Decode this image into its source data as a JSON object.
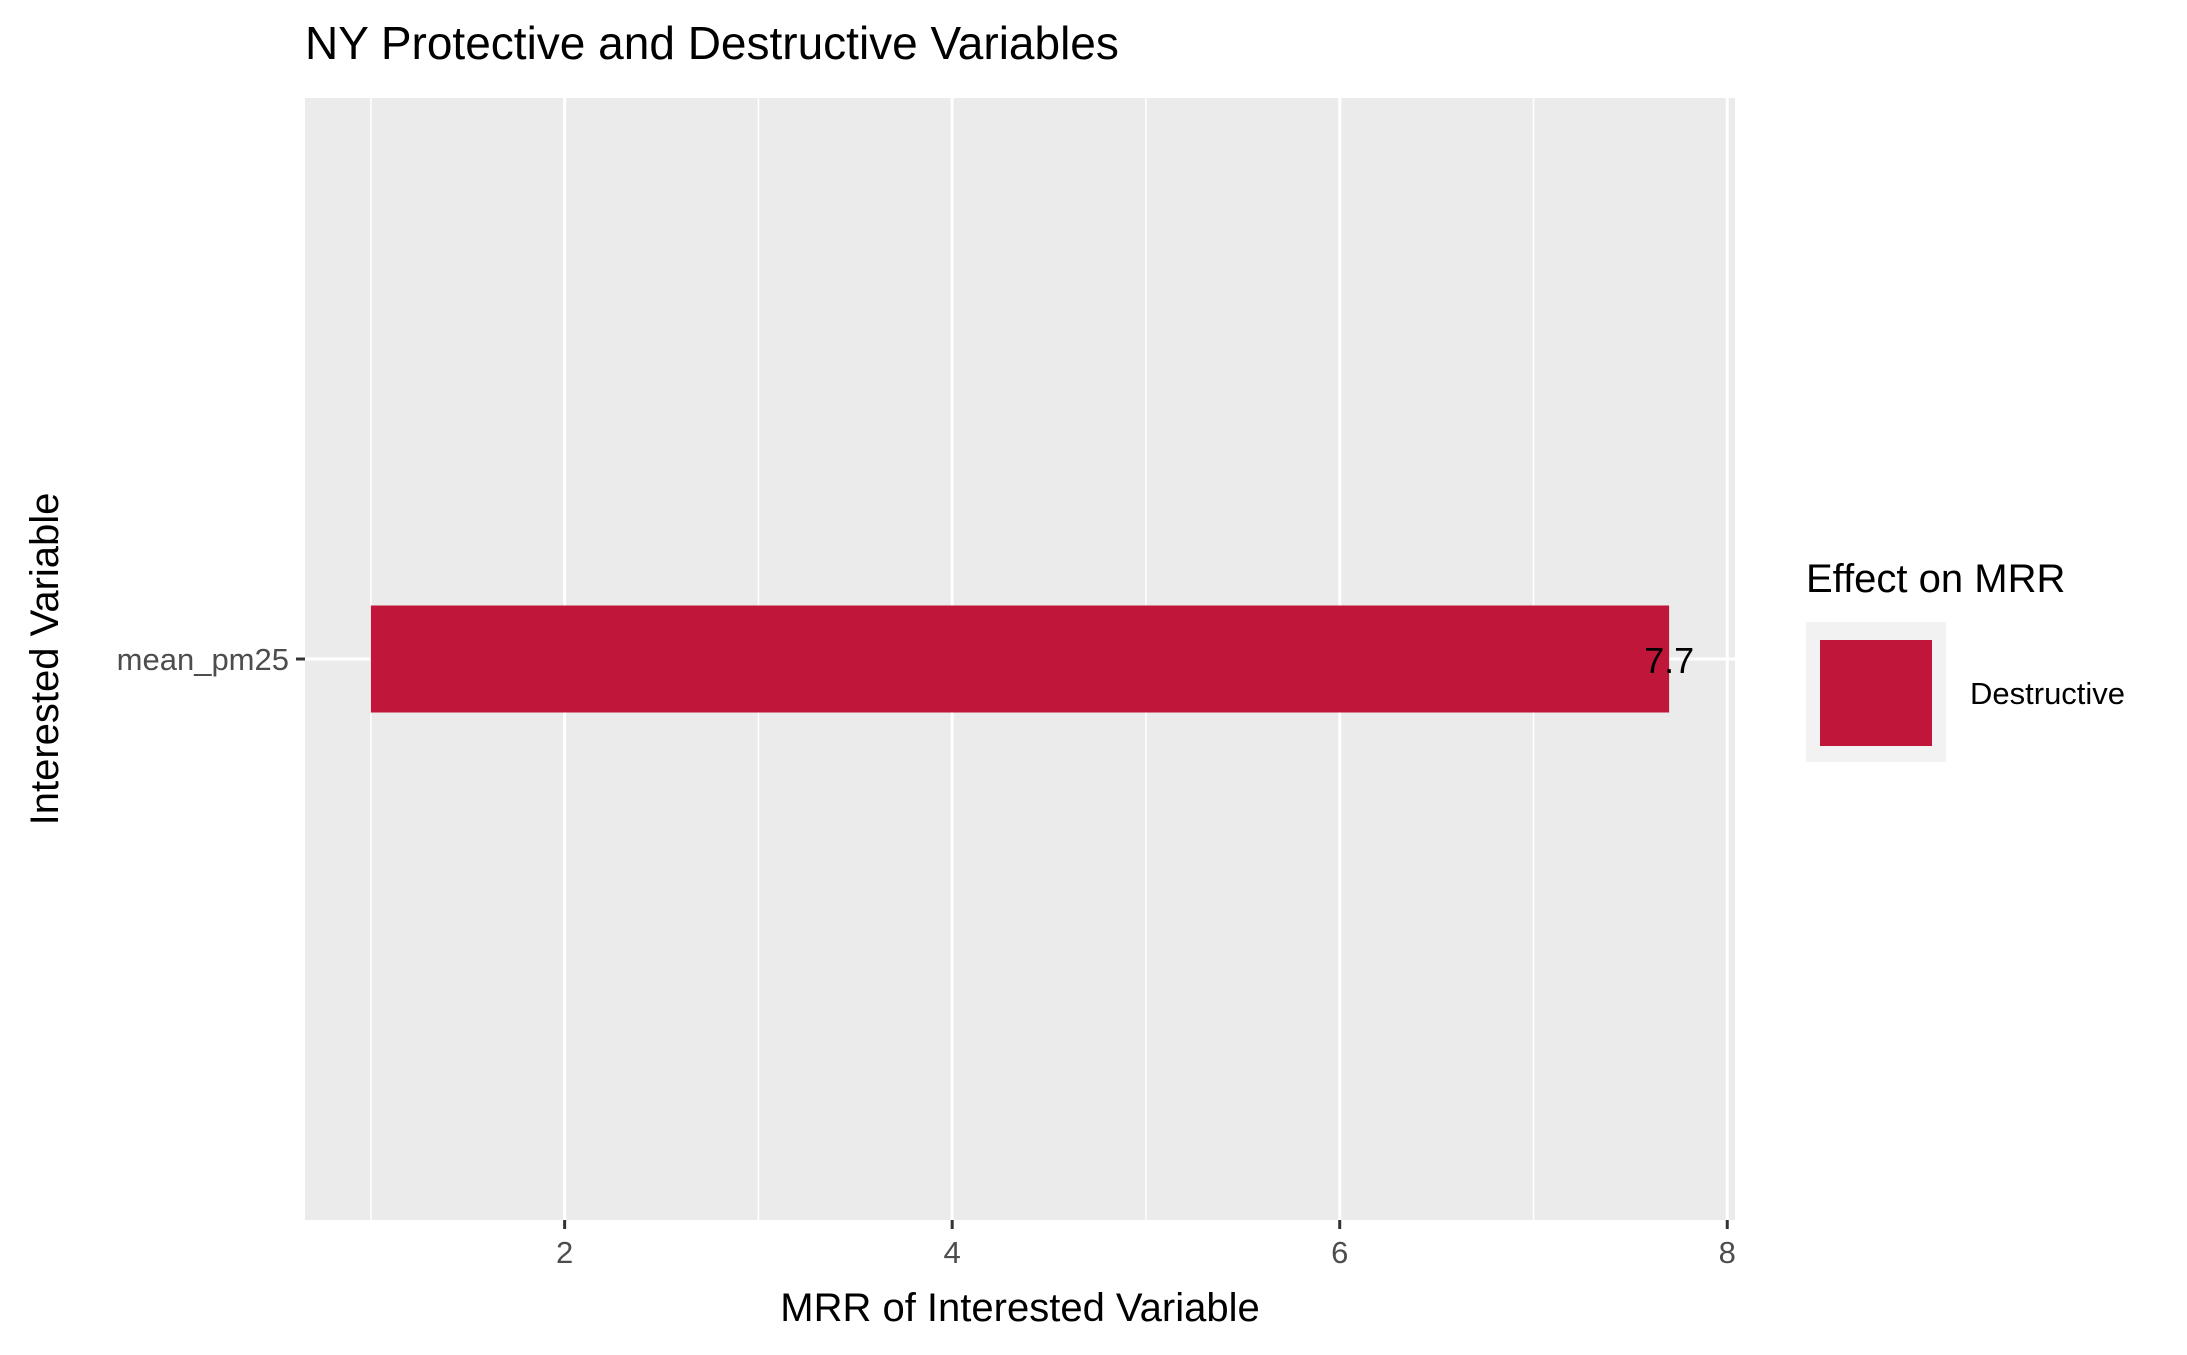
{
  "chart_data": {
    "type": "bar",
    "orientation": "horizontal",
    "title": "NY Protective and Destructive Variables",
    "xlabel": "MRR of Interested Variable",
    "ylabel": "Interested Variable",
    "categories": [
      "mean_pm25"
    ],
    "bars": [
      {
        "category": "mean_pm25",
        "start": 1,
        "value": 7.7,
        "label": "7.7",
        "group": "Destructive"
      }
    ],
    "xlim": [
      0.66,
      8.04
    ],
    "xticks": [
      2,
      4,
      6,
      8
    ],
    "xtick_labels": [
      "2",
      "4",
      "6",
      "8"
    ],
    "legend": {
      "title": "Effect on MRR",
      "placement": "right",
      "entries": [
        {
          "label": "Destructive",
          "color": "#c0163a"
        }
      ]
    },
    "grid": true,
    "colors": {
      "panel_background": "#ebebeb",
      "grid_line": "#ffffff",
      "bar_fill": "#c0163a"
    }
  }
}
